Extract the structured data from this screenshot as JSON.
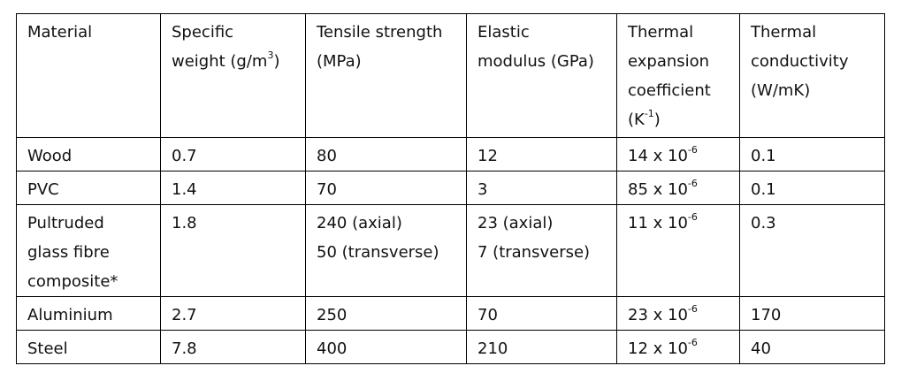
{
  "table": {
    "headers": [
      [
        "Material"
      ],
      [
        "Specific",
        "weight (g/m",
        "3",
        ")"
      ],
      [
        "Tensile strength",
        "(MPa)"
      ],
      [
        "Elastic",
        "modulus (GPa)"
      ],
      [
        "Thermal",
        "expansion",
        "coefficient",
        "(K",
        "-1",
        ")"
      ],
      [
        "Thermal",
        "conductivity",
        "(W/mK)"
      ]
    ],
    "rows": [
      {
        "material": [
          "Wood"
        ],
        "specific_weight": "0.7",
        "tensile_strength": [
          "80"
        ],
        "elastic_modulus": [
          "12"
        ],
        "thermal_expansion": {
          "mantissa": "14 x 10",
          "exponent": "-6"
        },
        "thermal_conductivity": "0.1"
      },
      {
        "material": [
          "PVC"
        ],
        "specific_weight": "1.4",
        "tensile_strength": [
          "70"
        ],
        "elastic_modulus": [
          "3"
        ],
        "thermal_expansion": {
          "mantissa": "85 x 10",
          "exponent": "-6"
        },
        "thermal_conductivity": "0.1"
      },
      {
        "material": [
          "Pultruded",
          "glass fibre",
          "composite*"
        ],
        "specific_weight": "1.8",
        "tensile_strength": [
          "240 (axial)",
          "50 (transverse)"
        ],
        "elastic_modulus": [
          "23 (axial)",
          "7 (transverse)"
        ],
        "thermal_expansion": {
          "mantissa": "11 x 10",
          "exponent": "-6"
        },
        "thermal_conductivity": "0.3"
      },
      {
        "material": [
          "Aluminium"
        ],
        "specific_weight": "2.7",
        "tensile_strength": [
          "250"
        ],
        "elastic_modulus": [
          "70"
        ],
        "thermal_expansion": {
          "mantissa": "23 x 10",
          "exponent": "-6"
        },
        "thermal_conductivity": "170"
      },
      {
        "material": [
          "Steel"
        ],
        "specific_weight": "7.8",
        "tensile_strength": [
          "400"
        ],
        "elastic_modulus": [
          "210"
        ],
        "thermal_expansion": {
          "mantissa": "12 x 10",
          "exponent": "-6"
        },
        "thermal_conductivity": "40"
      }
    ]
  }
}
